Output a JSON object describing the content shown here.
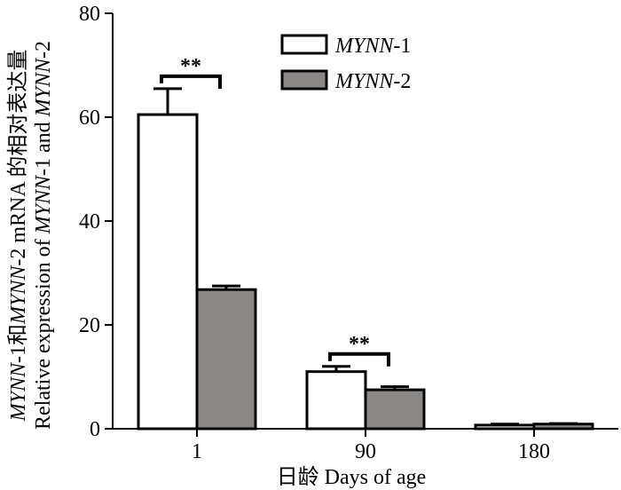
{
  "chart_data": {
    "type": "bar",
    "categories": [
      "1",
      "90",
      "180"
    ],
    "series": [
      {
        "name": "MYNN-1",
        "name_prefix": "MYNN",
        "name_suffix": "-1",
        "color": "#ffffff",
        "values": [
          60.5,
          11.0,
          0.7
        ],
        "errors": [
          5.0,
          1.0,
          0.2
        ]
      },
      {
        "name": "MYNN-2",
        "name_prefix": "MYNN",
        "name_suffix": "-2",
        "color": "#8c8787",
        "values": [
          26.8,
          7.5,
          0.9
        ],
        "errors": [
          0.7,
          0.6,
          0.1
        ]
      }
    ],
    "xlabel": "日龄  Days of age",
    "ylabel": {
      "line1_parts": [
        "MYNN",
        "-1和",
        "MYNN",
        "-2 mRNA 的相对表达量"
      ],
      "line2_parts": [
        "Relative expression of ",
        "MYNN",
        "-1 and ",
        "MYNN",
        "-2"
      ]
    },
    "ylim": [
      0,
      80
    ],
    "yticks": [
      0,
      20,
      40,
      60,
      80
    ],
    "significance": [
      {
        "category": "1",
        "label": "**"
      },
      {
        "category": "90",
        "label": "**"
      }
    ],
    "legend_position": "top-center",
    "grid": false
  }
}
